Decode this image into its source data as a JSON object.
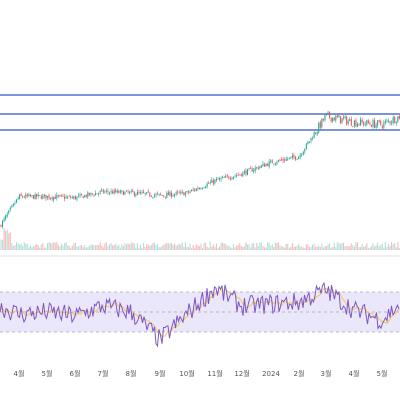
{
  "chart_data": [
    {
      "type": "candlestick",
      "x_tick_labels": [
        "4월",
        "5월",
        "6월",
        "7월",
        "8월",
        "9월",
        "10월",
        "11월",
        "12월",
        "2024",
        "2월",
        "3월",
        "4월",
        "5월"
      ],
      "horizontal_levels": {
        "color": "#2f55c9",
        "count": 3
      },
      "price_trend": [
        {
          "x": "start",
          "close": 5
        },
        {
          "x": "4월",
          "close": 29
        },
        {
          "x": "5월",
          "close": 29
        },
        {
          "x": "6월",
          "close": 28
        },
        {
          "x": "7월",
          "close": 33
        },
        {
          "x": "8월",
          "close": 32
        },
        {
          "x": "9월",
          "close": 30
        },
        {
          "x": "10월",
          "close": 32
        },
        {
          "x": "11월",
          "close": 42
        },
        {
          "x": "12월",
          "close": 48
        },
        {
          "x": "2024",
          "close": 57
        },
        {
          "x": "2월",
          "close": 62
        },
        {
          "x": "3월",
          "close": 95
        },
        {
          "x": "4월",
          "close": 90
        },
        {
          "x": "5월",
          "close": 88
        },
        {
          "x": "end",
          "close": 95
        }
      ],
      "up_color": "#26a69a",
      "down_color": "#ef5350",
      "volume": true
    },
    {
      "type": "line",
      "indicator": "RSI",
      "ylim": [
        0,
        100
      ],
      "bands": [
        30,
        50,
        70
      ],
      "band_fill": "#ebe7fb",
      "rsi_color": "#7e57c2",
      "ma_color": "#f2c94c",
      "rsi_trend": [
        {
          "x": "start",
          "value": 55
        },
        {
          "x": "4월",
          "value": 48
        },
        {
          "x": "5월",
          "value": 50
        },
        {
          "x": "6월",
          "value": 46
        },
        {
          "x": "7월",
          "value": 56
        },
        {
          "x": "8월",
          "value": 50
        },
        {
          "x": "9월",
          "value": 22
        },
        {
          "x": "10월",
          "value": 48
        },
        {
          "x": "11월",
          "value": 74
        },
        {
          "x": "12월",
          "value": 56
        },
        {
          "x": "2024",
          "value": 58
        },
        {
          "x": "2월",
          "value": 60
        },
        {
          "x": "3월",
          "value": 72
        },
        {
          "x": "4월",
          "value": 52
        },
        {
          "x": "5월",
          "value": 42
        },
        {
          "x": "end",
          "value": 58
        }
      ]
    }
  ]
}
